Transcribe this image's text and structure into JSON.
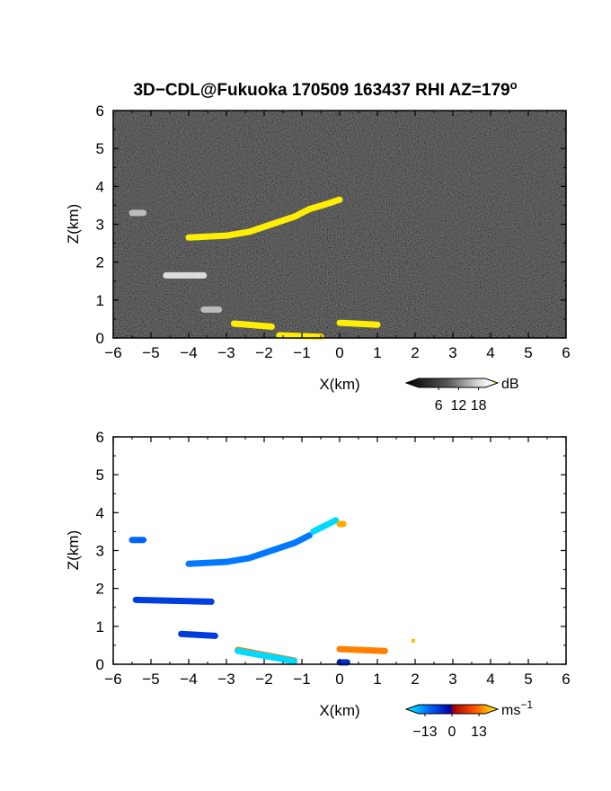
{
  "title": "3D−CDL@Fukuoka 170509 163437 RHI AZ=179",
  "title_sup": "o",
  "chart_data": [
    {
      "type": "heatmap",
      "id": "reflectivity",
      "xlabel": "X(km)",
      "ylabel": "Z(km)",
      "xlim": [
        -6,
        6
      ],
      "ylim": [
        0,
        6
      ],
      "xticks": [
        "−6",
        "−5",
        "−4",
        "−3",
        "−2",
        "−1",
        "0",
        "1",
        "2",
        "3",
        "4",
        "5",
        "6"
      ],
      "yticks": [
        "0",
        "1",
        "2",
        "3",
        "4",
        "5",
        "6"
      ],
      "colorbar": {
        "unit": "dB",
        "ticks": [
          "6",
          "12",
          "18"
        ],
        "range": [
          0,
          20
        ]
      },
      "background": "dark noise (low signal)",
      "echoes": [
        {
          "x": [
            -4.0,
            -3.0,
            -2.4,
            -1.8,
            -1.2,
            -0.8,
            -0.3,
            0.0
          ],
          "z": [
            2.65,
            2.7,
            2.8,
            3.0,
            3.2,
            3.4,
            3.55,
            3.65
          ],
          "level": "high"
        },
        {
          "x": [
            -5.5,
            -5.2
          ],
          "z": [
            3.3,
            3.3
          ],
          "level": "low"
        },
        {
          "x": [
            -4.6,
            -3.6
          ],
          "z": [
            1.65,
            1.65
          ],
          "level": "mixed"
        },
        {
          "x": [
            -3.6,
            -3.2
          ],
          "z": [
            0.75,
            0.75
          ],
          "level": "low"
        },
        {
          "x": [
            -2.8,
            -1.8
          ],
          "z": [
            0.38,
            0.3
          ],
          "level": "high"
        },
        {
          "x": [
            -1.6,
            -0.5
          ],
          "z": [
            0.07,
            0.03
          ],
          "level": "high"
        },
        {
          "x": [
            0.0,
            1.0
          ],
          "z": [
            0.4,
            0.35
          ],
          "level": "high"
        }
      ]
    },
    {
      "type": "heatmap",
      "id": "doppler-velocity",
      "xlabel": "X(km)",
      "ylabel": "Z(km)",
      "xlim": [
        -6,
        6
      ],
      "ylim": [
        0,
        6
      ],
      "xticks": [
        "−6",
        "−5",
        "−4",
        "−3",
        "−2",
        "−1",
        "0",
        "1",
        "2",
        "3",
        "4",
        "5",
        "6"
      ],
      "yticks": [
        "0",
        "1",
        "2",
        "3",
        "4",
        "5",
        "6"
      ],
      "colorbar": {
        "unit": "ms",
        "unit_sup": "−1",
        "ticks": [
          "−13",
          "0",
          "13"
        ],
        "range": [
          -16,
          16
        ]
      },
      "background": "white (no data)",
      "echoes": [
        {
          "x": [
            -4.0,
            -3.0,
            -2.4,
            -1.8,
            -1.2,
            -0.8
          ],
          "z": [
            2.65,
            2.7,
            2.8,
            3.0,
            3.2,
            3.4
          ],
          "velocity_ms": -9
        },
        {
          "x": [
            -0.7,
            -0.1
          ],
          "z": [
            3.5,
            3.8
          ],
          "velocity_ms": -14
        },
        {
          "x": [
            0.0,
            0.1
          ],
          "z": [
            3.7,
            3.7
          ],
          "velocity_ms": 12
        },
        {
          "x": [
            -5.5,
            -5.2
          ],
          "z": [
            3.28,
            3.28
          ],
          "velocity_ms": -8
        },
        {
          "x": [
            -5.4,
            -3.4
          ],
          "z": [
            1.7,
            1.65
          ],
          "velocity_ms": -5
        },
        {
          "x": [
            -4.2,
            -3.3
          ],
          "z": [
            0.8,
            0.75
          ],
          "velocity_ms": -5
        },
        {
          "x": [
            -2.7,
            -1.2
          ],
          "z": [
            0.38,
            0.1
          ],
          "velocity_ms": 10
        },
        {
          "x": [
            -2.7,
            -1.2
          ],
          "z": [
            0.35,
            0.08
          ],
          "velocity_ms": -14
        },
        {
          "x": [
            0.0,
            1.2
          ],
          "z": [
            0.4,
            0.35
          ],
          "velocity_ms": 10
        },
        {
          "x": [
            0.0,
            0.2
          ],
          "z": [
            0.05,
            0.05
          ],
          "velocity_ms": -4
        },
        {
          "x": [
            1.95
          ],
          "z": [
            0.62
          ],
          "velocity_ms": 13
        }
      ]
    }
  ]
}
